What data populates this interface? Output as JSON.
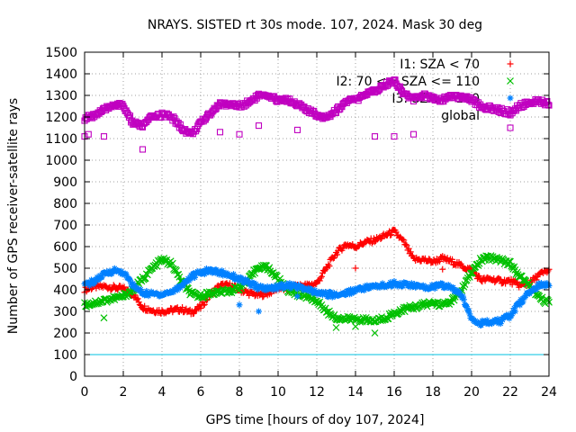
{
  "chart_data": {
    "type": "scatter",
    "title": "NRAYS. SISTED rt 30s mode. 107, 2024. Mask 30 deg",
    "xlabel": "GPS time [hours of doy 107, 2024]",
    "ylabel": "Number of GPS receiver-satellite rays",
    "xlim": [
      0,
      24
    ],
    "ylim": [
      0,
      1500
    ],
    "xticks": [
      "0",
      "2",
      "4",
      "6",
      "8",
      "10",
      "12",
      "14",
      "16",
      "18",
      "20",
      "22",
      "24"
    ],
    "yticks": [
      "0",
      "100",
      "200",
      "300",
      "400",
      "500",
      "600",
      "700",
      "800",
      "900",
      "1000",
      "1100",
      "1200",
      "1300",
      "1400",
      "1500"
    ],
    "grid": true,
    "legend_position": "top-right",
    "reference_line": {
      "y": 100,
      "color": "#00c0e0"
    },
    "series": [
      {
        "name": "I1: SZA < 70",
        "marker": "+",
        "color": "#ff0000",
        "x": [
          0,
          0.5,
          1,
          1.5,
          2,
          2.5,
          3,
          3.5,
          4,
          4.5,
          5,
          5.5,
          6,
          6.5,
          7,
          7.5,
          8,
          8.5,
          9,
          9.5,
          10,
          10.5,
          11,
          11.5,
          12,
          12.5,
          13,
          13.5,
          14,
          14.5,
          15,
          15.5,
          16,
          16.5,
          17,
          17.5,
          18,
          18.5,
          19,
          19.5,
          20,
          20.5,
          21,
          21.5,
          22,
          22.5,
          23,
          23.5,
          24
        ],
        "values": [
          400,
          415,
          415,
          410,
          405,
          380,
          320,
          305,
          300,
          305,
          310,
          295,
          320,
          380,
          420,
          420,
          400,
          385,
          375,
          385,
          410,
          400,
          420,
          420,
          430,
          500,
          570,
          610,
          600,
          620,
          630,
          650,
          670,
          620,
          540,
          540,
          530,
          545,
          530,
          510,
          490,
          445,
          450,
          440,
          440,
          420,
          430,
          470,
          490
        ]
      },
      {
        "name": "I2: 70 <= SZA <= 110",
        "marker": "x",
        "color": "#00c000",
        "x": [
          0,
          0.5,
          1,
          1.5,
          2,
          2.5,
          3,
          3.5,
          4,
          4.5,
          5,
          5.5,
          6,
          6.5,
          7,
          7.5,
          8,
          8.5,
          9,
          9.5,
          10,
          10.5,
          11,
          11.5,
          12,
          12.5,
          13,
          13.5,
          14,
          14.5,
          15,
          15.5,
          16,
          16.5,
          17,
          17.5,
          18,
          18.5,
          19,
          19.5,
          20,
          20.5,
          21,
          21.5,
          22,
          22.5,
          23,
          23.5,
          24
        ],
        "values": [
          330,
          340,
          350,
          360,
          370,
          400,
          450,
          500,
          540,
          520,
          440,
          380,
          370,
          385,
          390,
          395,
          410,
          450,
          510,
          500,
          450,
          400,
          380,
          370,
          350,
          300,
          270,
          265,
          265,
          260,
          255,
          270,
          290,
          310,
          320,
          330,
          340,
          330,
          350,
          400,
          480,
          540,
          550,
          540,
          520,
          460,
          420,
          360,
          340
        ]
      },
      {
        "name": "I3: SZA > 110",
        "marker": "*",
        "color": "#0080ff",
        "x": [
          0,
          0.5,
          1,
          1.5,
          2,
          2.5,
          3,
          3.5,
          4,
          4.5,
          5,
          5.5,
          6,
          6.5,
          7,
          7.5,
          8,
          8.5,
          9,
          9.5,
          10,
          10.5,
          11,
          11.5,
          12,
          12.5,
          13,
          13.5,
          14,
          14.5,
          15,
          15.5,
          16,
          16.5,
          17,
          17.5,
          18,
          18.5,
          19,
          19.5,
          20,
          20.5,
          21,
          21.5,
          22,
          22.5,
          23,
          23.5,
          24
        ],
        "values": [
          420,
          440,
          470,
          490,
          480,
          420,
          385,
          380,
          380,
          390,
          420,
          460,
          480,
          490,
          480,
          470,
          450,
          430,
          410,
          405,
          415,
          420,
          415,
          400,
          385,
          380,
          375,
          385,
          400,
          410,
          415,
          420,
          430,
          425,
          420,
          410,
          415,
          420,
          410,
          370,
          270,
          245,
          250,
          255,
          280,
          340,
          390,
          420,
          430
        ]
      },
      {
        "name": "global",
        "marker": "square",
        "color": "#c000c0",
        "x": [
          0,
          0.5,
          1,
          1.5,
          2,
          2.5,
          3,
          3.5,
          4,
          4.5,
          5,
          5.5,
          6,
          6.5,
          7,
          7.5,
          8,
          8.5,
          9,
          9.5,
          10,
          10.5,
          11,
          11.5,
          12,
          12.5,
          13,
          13.5,
          14,
          14.5,
          15,
          15.5,
          16,
          16.5,
          17,
          17.5,
          18,
          18.5,
          19,
          19.5,
          20,
          20.5,
          21,
          21.5,
          22,
          22.5,
          23,
          23.5,
          24
        ],
        "values": [
          1190,
          1210,
          1230,
          1260,
          1250,
          1170,
          1160,
          1200,
          1210,
          1200,
          1150,
          1120,
          1170,
          1220,
          1260,
          1260,
          1250,
          1270,
          1300,
          1290,
          1280,
          1280,
          1260,
          1230,
          1210,
          1200,
          1230,
          1270,
          1280,
          1300,
          1320,
          1350,
          1370,
          1310,
          1280,
          1300,
          1290,
          1280,
          1300,
          1290,
          1280,
          1250,
          1240,
          1230,
          1220,
          1250,
          1270,
          1270,
          1260
        ]
      }
    ],
    "outliers": [
      {
        "series": "global",
        "x": [
          0,
          0.2,
          1,
          3,
          7,
          8,
          9,
          11,
          15,
          16,
          17,
          22
        ],
        "values": [
          1110,
          1120,
          1110,
          1050,
          1130,
          1120,
          1160,
          1140,
          1110,
          1110,
          1120,
          1150
        ]
      },
      {
        "series": "I1: SZA < 70",
        "x": [
          14,
          18.5
        ],
        "values": [
          500,
          495
        ]
      },
      {
        "series": "I2: 70 <= SZA <= 110",
        "x": [
          1,
          13,
          14,
          15
        ],
        "values": [
          270,
          225,
          230,
          200
        ]
      },
      {
        "series": "I3: SZA > 110",
        "x": [
          8,
          9,
          11
        ],
        "values": [
          330,
          300,
          370
        ]
      }
    ]
  }
}
